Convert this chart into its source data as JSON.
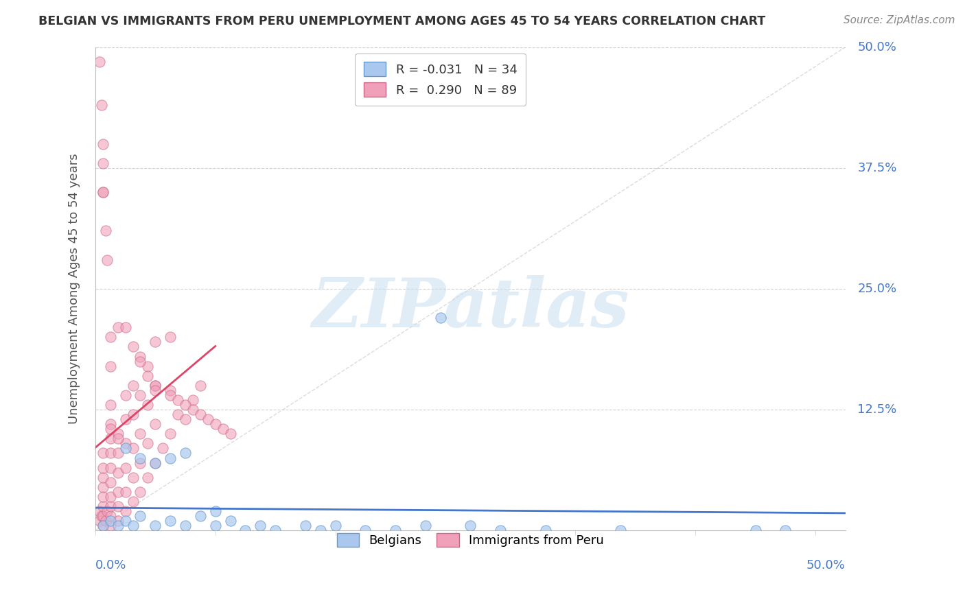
{
  "title": "BELGIAN VS IMMIGRANTS FROM PERU UNEMPLOYMENT AMONG AGES 45 TO 54 YEARS CORRELATION CHART",
  "source": "Source: ZipAtlas.com",
  "ylabel": "Unemployment Among Ages 45 to 54 years",
  "belgians_color": "#aac8ee",
  "belgians_edge": "#6699cc",
  "peru_color": "#f0a0b8",
  "peru_edge": "#cc6688",
  "trend_belgian_color": "#4477cc",
  "trend_peru_color": "#dd4466",
  "diag_color": "#cccccc",
  "background_color": "#ffffff",
  "grid_color": "#cccccc",
  "xlim": [
    0.0,
    50.0
  ],
  "ylim": [
    0.0,
    50.0
  ],
  "yticks": [
    0.0,
    12.5,
    25.0,
    37.5,
    50.0
  ],
  "ytick_labels": [
    "",
    "12.5%",
    "25.0%",
    "37.5%",
    "50.0%"
  ],
  "watermark_color": "#cce0f0",
  "belgians_R": -0.031,
  "belgians_N": 34,
  "peru_R": 0.29,
  "peru_N": 89,
  "belgians_x": [
    0.5,
    1.0,
    1.5,
    2.0,
    2.5,
    3.0,
    4.0,
    5.0,
    6.0,
    7.0,
    8.0,
    9.0,
    10.0,
    11.0,
    12.0,
    14.0,
    15.0,
    16.0,
    18.0,
    20.0,
    22.0,
    25.0,
    27.0,
    30.0,
    35.0,
    44.0,
    46.0,
    2.0,
    3.0,
    4.0,
    5.0,
    6.0,
    23.0,
    8.0
  ],
  "belgians_y": [
    0.5,
    1.0,
    0.5,
    1.0,
    0.5,
    1.5,
    0.5,
    1.0,
    0.5,
    1.5,
    0.5,
    1.0,
    0.0,
    0.5,
    0.0,
    0.5,
    0.0,
    0.5,
    0.0,
    0.0,
    0.5,
    0.5,
    0.0,
    0.0,
    0.0,
    0.0,
    0.0,
    8.5,
    7.5,
    7.0,
    7.5,
    8.0,
    22.0,
    2.0
  ],
  "peru_x": [
    0.3,
    0.3,
    0.4,
    0.5,
    0.5,
    0.5,
    0.5,
    0.5,
    0.5,
    0.5,
    0.5,
    0.7,
    0.8,
    1.0,
    1.0,
    1.0,
    1.0,
    1.0,
    1.0,
    1.0,
    1.0,
    1.0,
    1.0,
    1.5,
    1.5,
    1.5,
    1.5,
    1.5,
    1.5,
    2.0,
    2.0,
    2.0,
    2.0,
    2.0,
    2.0,
    2.5,
    2.5,
    2.5,
    2.5,
    2.5,
    3.0,
    3.0,
    3.0,
    3.0,
    3.0,
    3.5,
    3.5,
    3.5,
    3.5,
    4.0,
    4.0,
    4.0,
    4.0,
    4.5,
    5.0,
    5.0,
    5.0,
    5.5,
    6.0,
    6.5,
    7.0,
    0.3,
    0.4,
    0.5,
    0.5,
    0.7,
    0.8,
    1.0,
    1.0,
    1.5,
    2.0,
    2.5,
    3.0,
    3.5,
    4.0,
    4.0,
    5.0,
    5.5,
    6.0,
    6.5,
    7.0,
    7.5,
    8.0,
    8.5,
    9.0,
    1.0,
    1.5,
    0.5,
    0.5
  ],
  "peru_y": [
    1.0,
    2.0,
    1.5,
    0.5,
    1.5,
    2.5,
    3.5,
    4.5,
    5.5,
    6.5,
    8.0,
    1.0,
    2.0,
    0.5,
    1.5,
    2.5,
    3.5,
    5.0,
    6.5,
    8.0,
    9.5,
    11.0,
    13.0,
    1.0,
    2.5,
    4.0,
    6.0,
    8.0,
    10.0,
    2.0,
    4.0,
    6.5,
    9.0,
    11.5,
    14.0,
    3.0,
    5.5,
    8.5,
    12.0,
    15.0,
    4.0,
    7.0,
    10.0,
    14.0,
    18.0,
    5.5,
    9.0,
    13.0,
    17.0,
    7.0,
    11.0,
    15.0,
    19.5,
    8.5,
    10.0,
    14.5,
    20.0,
    12.0,
    11.5,
    13.5,
    15.0,
    48.5,
    44.0,
    38.0,
    35.0,
    31.0,
    28.0,
    20.0,
    17.0,
    21.0,
    21.0,
    19.0,
    17.5,
    16.0,
    15.0,
    14.5,
    14.0,
    13.5,
    13.0,
    12.5,
    12.0,
    11.5,
    11.0,
    10.5,
    10.0,
    10.5,
    9.5,
    35.0,
    40.0
  ]
}
